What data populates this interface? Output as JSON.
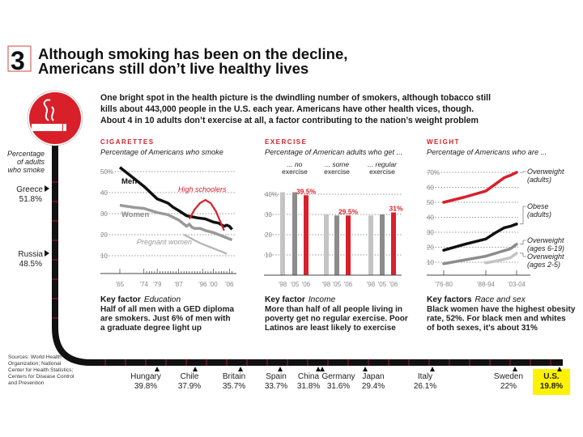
{
  "header": {
    "number": "3",
    "title_line1": "Although smoking has been on the decline,",
    "title_line2": "Americans still don’t live healthy lives"
  },
  "intro": [
    "One bright spot in the health picture is the dwindling number of smokers, although tobacco still",
    "kills about 443,000 people in the U.S. each year. Americans have other health vices, though.",
    "About 4 in 10 adults don’t exercise at all, a factor contributing to the nation’s weight problem"
  ],
  "colors": {
    "red": "#d8202a",
    "black": "#111111",
    "gray": "#9a9a9a",
    "lightgray": "#c4c4c4",
    "highlight": "#fff200"
  },
  "icons": {
    "sign": "no-smoking-sign-icon"
  },
  "timeline": {
    "label": [
      "Percentage",
      "of adults",
      "who smoke"
    ],
    "vertical": [
      {
        "country": "Greece",
        "value": "51.8%"
      },
      {
        "country": "Russia",
        "value": "48.5%"
      }
    ],
    "horizontal": [
      {
        "country": "Hungary",
        "value": "39.8%"
      },
      {
        "country": "Chile",
        "value": "37.9%"
      },
      {
        "country": "Britain",
        "value": "35.7%"
      },
      {
        "country": "Spain",
        "value": "33.7%"
      },
      {
        "country": "China",
        "value": "31.8%"
      },
      {
        "country": "Germany",
        "value": "31.6%"
      },
      {
        "country": "Japan",
        "value": "29.4%"
      },
      {
        "country": "Italy",
        "value": "26.1%"
      },
      {
        "country": "Sweden",
        "value": "22%"
      },
      {
        "country": "U.S.",
        "value": "19.8%",
        "highlight": true
      }
    ],
    "sources": [
      "Sources: World Health",
      "Organization; National",
      "Center for Health Statistics;",
      "Centers for Disease Control",
      "and Prevention"
    ]
  },
  "chart_data": [
    {
      "type": "line",
      "section": "CIGARETTES",
      "title": "Percentage of Americans who smoke",
      "ylim": [
        0,
        50
      ],
      "yticks": [
        "50%",
        "40",
        "30",
        "20",
        "10"
      ],
      "xticks": [
        "'65",
        "'74",
        "'79",
        "'87",
        "'96",
        "'00",
        "'06"
      ],
      "grid": true,
      "series": [
        {
          "name": "Men",
          "color": "#111111",
          "x": [
            1965,
            1970,
            1974,
            1979,
            1983,
            1985,
            1987,
            1990,
            1992,
            1994,
            1997,
            2000,
            2002,
            2004,
            2005,
            2006,
            2007
          ],
          "values": [
            52,
            47,
            43,
            37,
            35,
            33,
            31.5,
            29,
            28.5,
            28,
            27.5,
            26,
            25.5,
            24,
            24.5,
            24,
            22.5
          ]
        },
        {
          "name": "Women",
          "color": "#9a9a9a",
          "x": [
            1965,
            1970,
            1974,
            1979,
            1983,
            1987,
            1990,
            1991,
            1992,
            1993,
            1995,
            1997,
            2000,
            2003,
            2005,
            2007
          ],
          "values": [
            34,
            33,
            32.5,
            30.5,
            29.5,
            27,
            24,
            25,
            23.5,
            23,
            23,
            22,
            21,
            19.5,
            18.5,
            17.5
          ]
        },
        {
          "name": "High schoolers",
          "color": "#d8202a",
          "x": [
            1991,
            1993,
            1995,
            1997,
            1999,
            2001,
            2003,
            2004
          ],
          "values": [
            27.5,
            32,
            35,
            36.5,
            35,
            31,
            25,
            22
          ]
        },
        {
          "name": "Pregnant women",
          "color": "#b4b4b4",
          "x": [
            1989,
            1992,
            1995,
            1998,
            2001,
            2004,
            2005
          ],
          "values": [
            20,
            18,
            16,
            14.5,
            13,
            11.5,
            10.8
          ]
        }
      ],
      "key_factor": {
        "label": "Key factor",
        "topic": "Education",
        "text": [
          "Half of all men with a GED diploma",
          "are smokers. Just 6% of men with",
          "a graduate degree light up"
        ]
      }
    },
    {
      "type": "bar",
      "section": "EXERCISE",
      "title": "Percentage of American adults who get ...",
      "ylim": [
        0,
        40
      ],
      "yticks": [
        "40%",
        "30",
        "20",
        "10"
      ],
      "grid": true,
      "groups": [
        {
          "label": [
            "... no",
            "exercise"
          ],
          "categories": [
            "'98",
            "'05",
            "'06"
          ],
          "values": [
            41,
            41,
            39.5
          ],
          "data_label": "39.5%"
        },
        {
          "label": [
            "... some",
            "exercise"
          ],
          "categories": [
            "'98",
            "'05",
            "'06"
          ],
          "values": [
            30,
            29.5,
            29.5
          ],
          "data_label": "29.5%"
        },
        {
          "label": [
            "... regular",
            "exercise"
          ],
          "categories": [
            "'98",
            "'05",
            "'06"
          ],
          "values": [
            29.5,
            30,
            31
          ],
          "data_label": "31%"
        }
      ],
      "bar_colors": [
        "#c4c4c4",
        "#8c8c8c",
        "#d8202a"
      ],
      "key_factor": {
        "label": "Key factor",
        "topic": "Income",
        "text": [
          "More than half of all people living in",
          "poverty get no regular exercise. Poor",
          "Latinos are least likely to exercise"
        ]
      }
    },
    {
      "type": "line",
      "section": "WEIGHT",
      "title": "Percentage of Americans who are ...",
      "ylim": [
        10,
        70
      ],
      "yticks": [
        "70%",
        "60",
        "50",
        "40",
        "30",
        "20",
        "10"
      ],
      "xticks": [
        "'76-80",
        "'88-94",
        "'03-04"
      ],
      "grid": true,
      "series": [
        {
          "name": [
            "Overweight",
            "(adults)"
          ],
          "color": "#d8202a",
          "x": [
            0,
            0.5,
            1,
            1.3,
            1.6,
            1.8,
            2
          ],
          "values": [
            50,
            53.5,
            57.5,
            62,
            66.5,
            68,
            70
          ]
        },
        {
          "name": [
            "Obese",
            "(adults)"
          ],
          "color": "#111111",
          "x": [
            0,
            0.5,
            1,
            1.3,
            1.6,
            1.8,
            2
          ],
          "values": [
            18,
            22,
            25.5,
            29.5,
            33,
            34,
            35.5
          ]
        },
        {
          "name": [
            "Overweight",
            "(ages 6-19)"
          ],
          "color": "#8c8c8c",
          "x": [
            0,
            0.5,
            1,
            1.4,
            1.8,
            2
          ],
          "values": [
            9,
            11.5,
            14,
            16.5,
            19,
            22
          ]
        },
        {
          "name": [
            "Overweight",
            "(ages 2-5)"
          ],
          "color": "#c4c4c4",
          "x": [
            1,
            1.4,
            1.8,
            2
          ],
          "values": [
            9.5,
            11,
            13,
            16
          ]
        }
      ],
      "key_factor": {
        "label": "Key factors",
        "topic": "Race and sex",
        "text": [
          "Black women have the highest obesity",
          "rate, 52%. For black men and whites",
          "of both sexes, it's about 31%"
        ]
      }
    }
  ]
}
